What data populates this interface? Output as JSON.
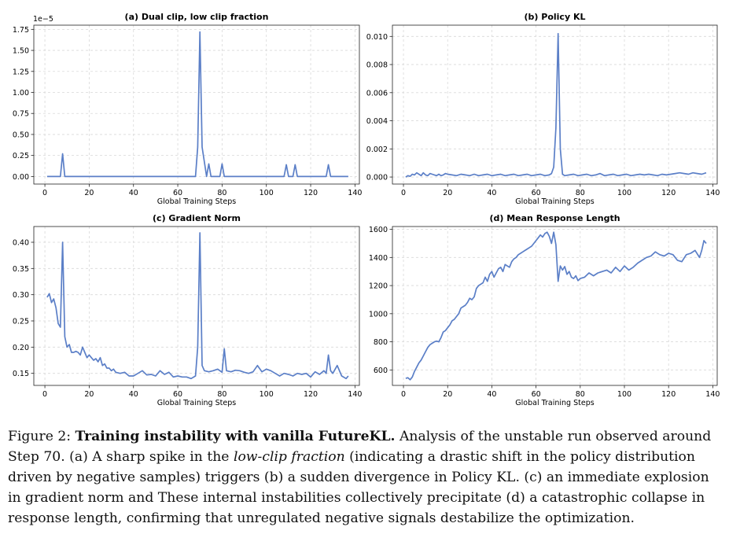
{
  "chart_data": [
    {
      "type": "line",
      "title": "(a) Dual clip, low clip fraction",
      "xlabel": "Global Training Steps",
      "ylabel": "",
      "offset_text": "1e−5",
      "xlim": [
        -5,
        142
      ],
      "ylim": [
        -0.09,
        1.8
      ],
      "xticks": [
        0,
        20,
        40,
        60,
        80,
        100,
        120,
        140
      ],
      "yticks": [
        0.0,
        0.25,
        0.5,
        0.75,
        1.0,
        1.25,
        1.5,
        1.75
      ],
      "ytick_labels": [
        "0.00",
        "0.25",
        "0.50",
        "0.75",
        "1.00",
        "1.25",
        "1.50",
        "1.75"
      ],
      "color": "#5b7fc7",
      "grid": true,
      "series": [
        {
          "x": [
            1,
            7,
            8,
            9,
            68,
            69,
            70,
            71,
            73,
            74,
            75,
            77,
            78,
            79,
            80,
            81,
            82,
            108,
            109,
            110,
            112,
            113,
            114,
            127,
            128,
            129,
            137
          ],
          "y": [
            0,
            0,
            0.27,
            0,
            0,
            0.35,
            1.72,
            0.35,
            0,
            0.15,
            0,
            0,
            0,
            0,
            0.15,
            0,
            0,
            0,
            0.14,
            0,
            0,
            0.14,
            0,
            0,
            0.14,
            0,
            0
          ]
        }
      ]
    },
    {
      "type": "line",
      "title": "(b) Policy KL",
      "xlabel": "Global Training Steps",
      "ylabel": "",
      "xlim": [
        -5,
        142
      ],
      "ylim": [
        -0.0005,
        0.0108
      ],
      "xticks": [
        0,
        20,
        40,
        60,
        80,
        100,
        120,
        140
      ],
      "yticks": [
        0.0,
        0.002,
        0.004,
        0.006,
        0.008,
        0.01
      ],
      "ytick_labels": [
        "0.000",
        "0.002",
        "0.004",
        "0.006",
        "0.008",
        "0.010"
      ],
      "color": "#5b7fc7",
      "grid": true,
      "series": [
        {
          "x": [
            1,
            2,
            3,
            4,
            5,
            6,
            7,
            8,
            9,
            10,
            11,
            12,
            13,
            14,
            15,
            16,
            17,
            18,
            19,
            20,
            22,
            24,
            26,
            28,
            30,
            32,
            34,
            36,
            38,
            40,
            42,
            44,
            46,
            48,
            50,
            52,
            54,
            56,
            58,
            60,
            62,
            64,
            66,
            67,
            68,
            69,
            70,
            71,
            72,
            73,
            75,
            77,
            79,
            81,
            83,
            85,
            87,
            89,
            91,
            93,
            95,
            97,
            99,
            101,
            103,
            105,
            107,
            109,
            111,
            113,
            115,
            117,
            119,
            121,
            123,
            125,
            127,
            129,
            131,
            133,
            135,
            137
          ],
          "y": [
            0,
            0.0001,
            5e-05,
            0.0002,
            0.00015,
            0.0003,
            0.0002,
            0.0001,
            0.0003,
            0.00015,
            0.0001,
            0.00025,
            0.0002,
            0.00015,
            0.0001,
            0.0002,
            0.0001,
            0.00015,
            0.00025,
            0.0002,
            0.00015,
            0.0001,
            0.0002,
            0.00015,
            0.0001,
            0.0002,
            0.0001,
            0.00015,
            0.0002,
            0.0001,
            0.00015,
            0.0002,
            0.0001,
            0.00015,
            0.0002,
            0.0001,
            0.00015,
            0.0002,
            0.0001,
            0.00015,
            0.0002,
            0.0001,
            0.00015,
            0.00025,
            0.0007,
            0.0035,
            0.0102,
            0.002,
            0.0002,
            0.0001,
            0.00015,
            0.0002,
            0.0001,
            0.00015,
            0.0002,
            0.0001,
            0.00015,
            0.00025,
            0.0001,
            0.00015,
            0.0002,
            0.0001,
            0.00015,
            0.0002,
            0.0001,
            0.00015,
            0.0002,
            0.00015,
            0.0002,
            0.00015,
            0.0001,
            0.0002,
            0.00015,
            0.0002,
            0.00025,
            0.0003,
            0.00025,
            0.0002,
            0.0003,
            0.00025,
            0.0002,
            0.0003
          ]
        }
      ]
    },
    {
      "type": "line",
      "title": "(c) Gradient Norm",
      "xlabel": "Global Training Steps",
      "ylabel": "",
      "xlim": [
        -5,
        142
      ],
      "ylim": [
        0.127,
        0.43
      ],
      "xticks": [
        0,
        20,
        40,
        60,
        80,
        100,
        120,
        140
      ],
      "yticks": [
        0.15,
        0.2,
        0.25,
        0.3,
        0.35,
        0.4
      ],
      "ytick_labels": [
        "0.15",
        "0.20",
        "0.25",
        "0.30",
        "0.35",
        "0.40"
      ],
      "color": "#5b7fc7",
      "grid": true,
      "series": [
        {
          "x": [
            1,
            2,
            3,
            4,
            5,
            6,
            7,
            8,
            9,
            10,
            11,
            12,
            13,
            14,
            15,
            16,
            17,
            18,
            19,
            20,
            21,
            22,
            23,
            24,
            25,
            26,
            27,
            28,
            29,
            30,
            31,
            32,
            34,
            36,
            38,
            40,
            42,
            44,
            46,
            48,
            50,
            52,
            54,
            56,
            58,
            60,
            62,
            64,
            66,
            68,
            69,
            70,
            71,
            72,
            74,
            76,
            78,
            80,
            81,
            82,
            84,
            86,
            88,
            90,
            92,
            94,
            96,
            98,
            100,
            102,
            104,
            106,
            108,
            110,
            112,
            114,
            116,
            118,
            120,
            122,
            124,
            126,
            127,
            128,
            129,
            130,
            132,
            134,
            136,
            137
          ],
          "y": [
            0.295,
            0.302,
            0.285,
            0.292,
            0.275,
            0.245,
            0.238,
            0.4,
            0.22,
            0.2,
            0.205,
            0.19,
            0.19,
            0.192,
            0.19,
            0.185,
            0.2,
            0.19,
            0.18,
            0.185,
            0.18,
            0.175,
            0.178,
            0.172,
            0.18,
            0.165,
            0.168,
            0.16,
            0.16,
            0.155,
            0.158,
            0.152,
            0.15,
            0.152,
            0.145,
            0.145,
            0.15,
            0.155,
            0.147,
            0.148,
            0.145,
            0.155,
            0.148,
            0.152,
            0.143,
            0.145,
            0.143,
            0.143,
            0.14,
            0.145,
            0.2,
            0.418,
            0.165,
            0.155,
            0.153,
            0.155,
            0.158,
            0.152,
            0.197,
            0.155,
            0.153,
            0.156,
            0.155,
            0.152,
            0.15,
            0.153,
            0.165,
            0.153,
            0.158,
            0.155,
            0.15,
            0.145,
            0.15,
            0.148,
            0.145,
            0.15,
            0.148,
            0.15,
            0.143,
            0.153,
            0.148,
            0.155,
            0.15,
            0.185,
            0.155,
            0.15,
            0.165,
            0.145,
            0.14,
            0.145
          ]
        }
      ]
    },
    {
      "type": "line",
      "title": "(d) Mean Response Length",
      "xlabel": "Global Training Steps",
      "ylabel": "",
      "xlim": [
        -5,
        142
      ],
      "ylim": [
        490,
        1620
      ],
      "xticks": [
        0,
        20,
        40,
        60,
        80,
        100,
        120,
        140
      ],
      "yticks": [
        600,
        800,
        1000,
        1200,
        1400,
        1600
      ],
      "ytick_labels": [
        "600",
        "800",
        "1000",
        "1200",
        "1400",
        "1600"
      ],
      "color": "#5b7fc7",
      "grid": true,
      "series": [
        {
          "x": [
            1,
            2,
            3,
            4,
            5,
            6,
            7,
            8,
            9,
            10,
            11,
            12,
            13,
            14,
            15,
            16,
            17,
            18,
            19,
            20,
            21,
            22,
            23,
            24,
            25,
            26,
            27,
            28,
            29,
            30,
            31,
            32,
            33,
            34,
            35,
            36,
            37,
            38,
            39,
            40,
            41,
            42,
            43,
            44,
            45,
            46,
            47,
            48,
            49,
            50,
            51,
            52,
            53,
            54,
            55,
            56,
            57,
            58,
            59,
            60,
            61,
            62,
            63,
            64,
            65,
            66,
            67,
            68,
            69,
            70,
            71,
            72,
            73,
            74,
            75,
            76,
            77,
            78,
            79,
            80,
            82,
            84,
            86,
            88,
            90,
            92,
            94,
            96,
            98,
            100,
            102,
            104,
            106,
            108,
            110,
            112,
            114,
            116,
            118,
            120,
            122,
            124,
            126,
            128,
            130,
            132,
            134,
            135,
            136,
            137
          ],
          "y": [
            540,
            545,
            530,
            550,
            590,
            620,
            650,
            670,
            700,
            730,
            760,
            780,
            790,
            800,
            805,
            800,
            830,
            870,
            880,
            900,
            920,
            950,
            960,
            980,
            1000,
            1040,
            1050,
            1060,
            1080,
            1110,
            1100,
            1120,
            1180,
            1200,
            1210,
            1220,
            1260,
            1230,
            1280,
            1300,
            1260,
            1290,
            1320,
            1330,
            1300,
            1350,
            1340,
            1330,
            1370,
            1390,
            1400,
            1420,
            1430,
            1440,
            1450,
            1460,
            1470,
            1480,
            1500,
            1520,
            1540,
            1560,
            1545,
            1570,
            1580,
            1550,
            1500,
            1580,
            1490,
            1230,
            1340,
            1310,
            1335,
            1280,
            1300,
            1260,
            1250,
            1270,
            1235,
            1250,
            1260,
            1290,
            1270,
            1290,
            1300,
            1310,
            1290,
            1330,
            1300,
            1340,
            1310,
            1330,
            1360,
            1380,
            1400,
            1410,
            1440,
            1420,
            1410,
            1430,
            1420,
            1380,
            1370,
            1420,
            1430,
            1450,
            1400,
            1450,
            1520,
            1500
          ]
        }
      ]
    }
  ],
  "caption": {
    "label": "Figure 2:",
    "bold": "Training instability with vanilla FutureKL.",
    "part1": " Analysis of the unstable run observed around Step 70. (a) A sharp spike in the ",
    "italic": "low-clip fraction",
    "part2": " (indicating a drastic shift in the policy distribution driven by negative samples) triggers (b) a sudden divergence in Policy KL. (c) an immediate explosion in gradient norm and These internal instabilities collectively precipitate (d) a catastrophic collapse in response length, confirming that unregulated negative signals destabilize the optimization."
  }
}
